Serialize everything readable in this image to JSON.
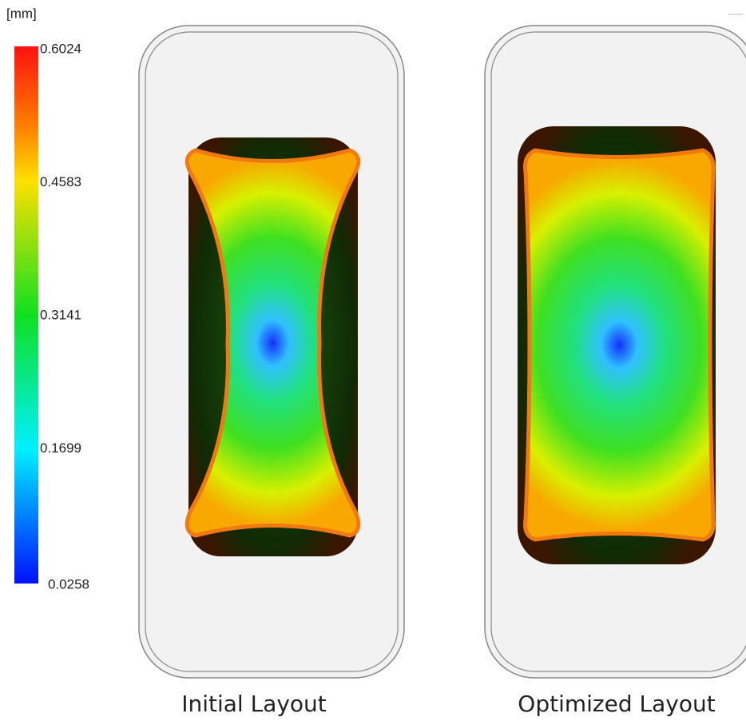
{
  "colorbar": {
    "unit": "[mm]",
    "ticks": [
      0.6024,
      0.4583,
      0.3141,
      0.1699,
      0.0258
    ]
  },
  "panels": [
    {
      "caption": "Initial Layout"
    },
    {
      "caption": "Optimized Layout"
    }
  ]
}
